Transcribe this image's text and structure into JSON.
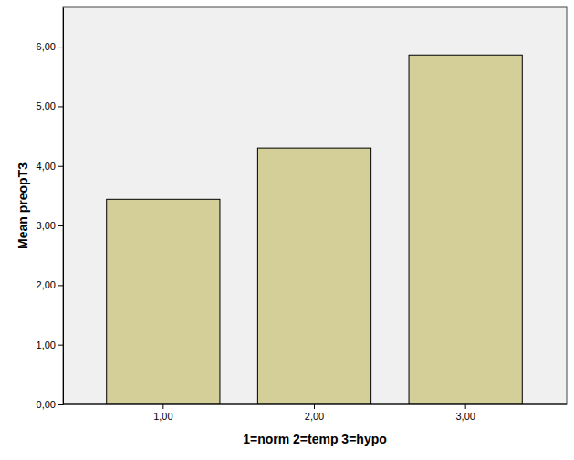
{
  "chart_data": {
    "type": "bar",
    "x_label": "1=norm 2=temp 3=hypo",
    "y_label": "Mean preopT3",
    "categories": [
      "1,00",
      "2,00",
      "3,00"
    ],
    "values": [
      3.44,
      4.3,
      5.86
    ],
    "color": "#d4cf98",
    "ylim": [
      0,
      6.66
    ],
    "yticks": [
      {
        "value": 0,
        "label": "0,00"
      },
      {
        "value": 1,
        "label": "1,00"
      },
      {
        "value": 2,
        "label": "2,00"
      },
      {
        "value": 3,
        "label": "3,00"
      },
      {
        "value": 4,
        "label": "4,00"
      },
      {
        "value": 5,
        "label": "5,00"
      },
      {
        "value": 6,
        "label": "6,00"
      }
    ],
    "grid": false
  }
}
